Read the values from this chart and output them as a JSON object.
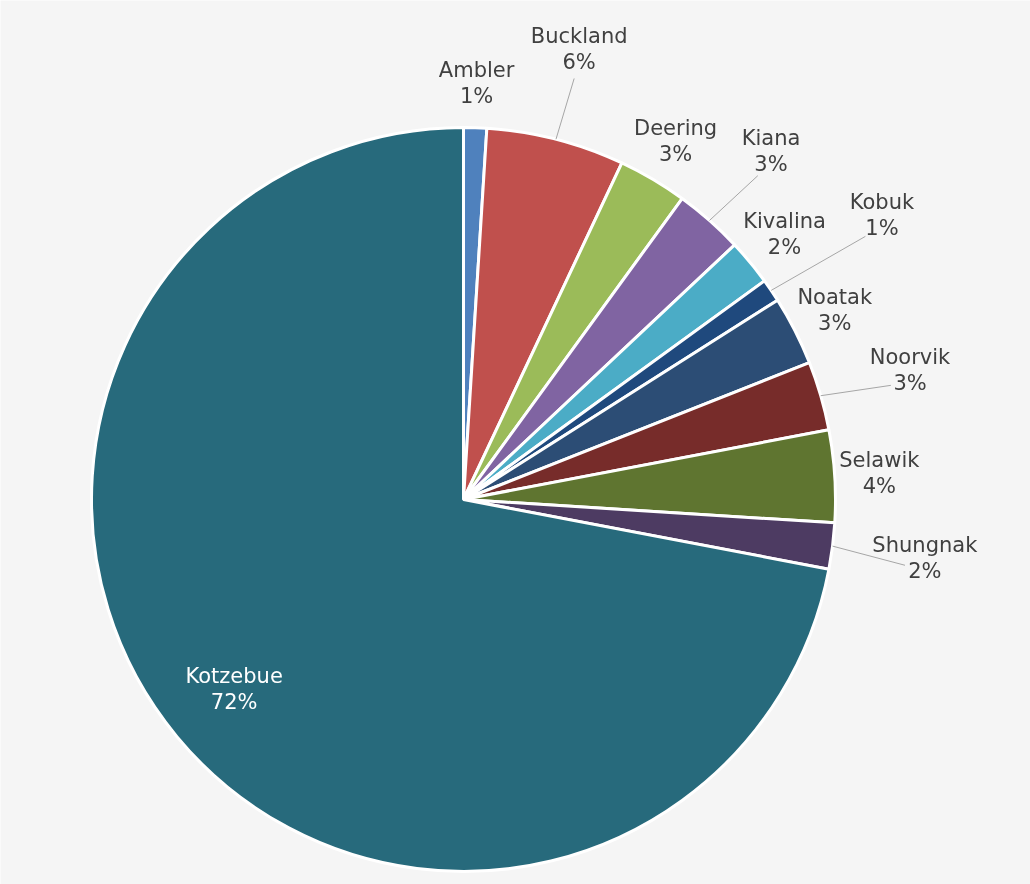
{
  "chart_data": {
    "type": "pie",
    "categories": [
      "Ambler",
      "Buckland",
      "Deering",
      "Kiana",
      "Kivalina",
      "Kobuk",
      "Noatak",
      "Noorvik",
      "Selawik",
      "Shungnak",
      "Kotzebue"
    ],
    "values": [
      1,
      6,
      3,
      3,
      2,
      1,
      3,
      3,
      4,
      2,
      72
    ],
    "colors": [
      "#4f81bd",
      "#c0504d",
      "#9bbb59",
      "#8064a2",
      "#4bacc6",
      "#1f497d",
      "#2c4d75",
      "#772c2a",
      "#5f7530",
      "#4d3b62",
      "#276a7c"
    ],
    "value_labels": [
      "1%",
      "6%",
      "3%",
      "3%",
      "2%",
      "1%",
      "3%",
      "3%",
      "4%",
      "2%",
      "72%"
    ]
  }
}
